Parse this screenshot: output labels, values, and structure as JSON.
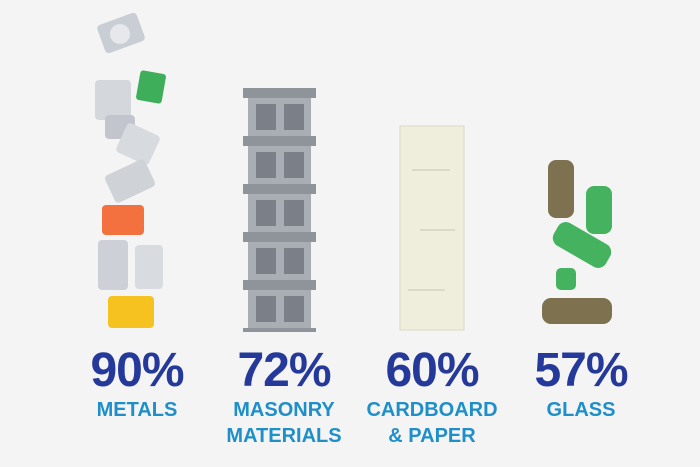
{
  "items": [
    {
      "percent": "90%",
      "label": "METALS",
      "icon": "metal-cans"
    },
    {
      "percent": "72%",
      "label": "MASONRY\nMATERIALS",
      "icon": "cinder-blocks"
    },
    {
      "percent": "60%",
      "label": "CARDBOARD\n& PAPER",
      "icon": "paper-stack"
    },
    {
      "percent": "57%",
      "label": "GLASS",
      "icon": "glass-bottles"
    }
  ],
  "colors": {
    "percent": "#24399a",
    "label": "#1e8fc8",
    "background": "#f4f4f4"
  }
}
